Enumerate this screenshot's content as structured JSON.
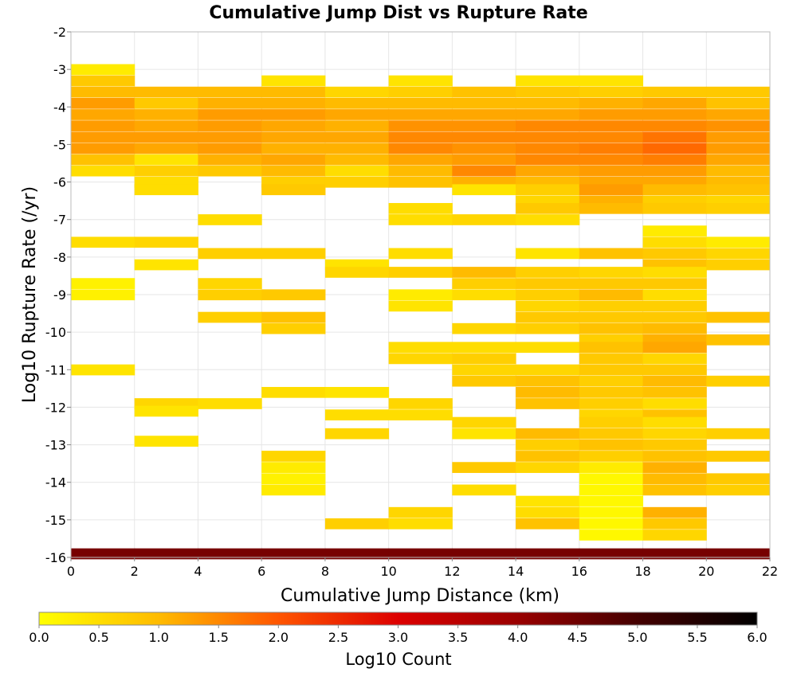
{
  "chart_data": {
    "type": "heatmap",
    "title": "Cumulative Jump Dist vs Rupture Rate",
    "xlabel": "Cumulative Jump Distance (km)",
    "ylabel": "Log10 Rupture Rate (/yr)",
    "xlim": [
      0,
      22
    ],
    "ylim": [
      -16,
      -2
    ],
    "x_ticks": [
      "0",
      "2",
      "4",
      "6",
      "8",
      "10",
      "12",
      "14",
      "16",
      "18",
      "20",
      "22"
    ],
    "y_ticks": [
      "-2",
      "-3",
      "-4",
      "-5",
      "-6",
      "-7",
      "-8",
      "-9",
      "-10",
      "-11",
      "-12",
      "-13",
      "-14",
      "-15",
      "-16"
    ],
    "x_bin_width": 2,
    "y_bin_height": 0.28,
    "grid": true,
    "colorbar": {
      "label": "Log10 Count",
      "range": [
        0,
        6
      ],
      "ticks": [
        "0.0",
        "0.5",
        "1.0",
        "1.5",
        "2.0",
        "2.5",
        "3.0",
        "3.5",
        "4.0",
        "4.5",
        "5.0",
        "5.5",
        "6.0"
      ],
      "colors": [
        "#ffff00",
        "#ffbb00",
        "#ff5500",
        "#dd0000",
        "#990000",
        "#440000",
        "#000000"
      ]
    },
    "cells": [
      {
        "x": 0,
        "y": -3.0,
        "v": 0.3
      },
      {
        "x": 0,
        "y": -3.3,
        "v": 0.8
      },
      {
        "x": 0,
        "y": -3.6,
        "v": 1.0
      },
      {
        "x": 0,
        "y": -3.9,
        "v": 1.3
      },
      {
        "x": 0,
        "y": -4.2,
        "v": 1.2
      },
      {
        "x": 0,
        "y": -4.5,
        "v": 1.3
      },
      {
        "x": 0,
        "y": -4.8,
        "v": 1.3
      },
      {
        "x": 0,
        "y": -5.1,
        "v": 1.3
      },
      {
        "x": 0,
        "y": -5.4,
        "v": 0.9
      },
      {
        "x": 0,
        "y": -5.7,
        "v": 0.5
      },
      {
        "x": 0,
        "y": -7.6,
        "v": 0.5
      },
      {
        "x": 0,
        "y": -8.7,
        "v": 0.2
      },
      {
        "x": 0,
        "y": -9.0,
        "v": 0.2
      },
      {
        "x": 0,
        "y": -11.0,
        "v": 0.4
      },
      {
        "x": 2,
        "y": -3.6,
        "v": 1.0
      },
      {
        "x": 2,
        "y": -3.9,
        "v": 0.8
      },
      {
        "x": 2,
        "y": -4.2,
        "v": 1.1
      },
      {
        "x": 2,
        "y": -4.5,
        "v": 1.2
      },
      {
        "x": 2,
        "y": -4.8,
        "v": 1.3
      },
      {
        "x": 2,
        "y": -5.1,
        "v": 1.2
      },
      {
        "x": 2,
        "y": -5.4,
        "v": 0.4
      },
      {
        "x": 2,
        "y": -5.7,
        "v": 0.7
      },
      {
        "x": 2,
        "y": -6.0,
        "v": 0.5
      },
      {
        "x": 2,
        "y": -6.2,
        "v": 0.5
      },
      {
        "x": 2,
        "y": -7.6,
        "v": 0.6
      },
      {
        "x": 2,
        "y": -8.2,
        "v": 0.4
      },
      {
        "x": 2,
        "y": -11.9,
        "v": 0.6
      },
      {
        "x": 2,
        "y": -12.1,
        "v": 0.4
      },
      {
        "x": 2,
        "y": -12.9,
        "v": 0.4
      },
      {
        "x": 4,
        "y": -3.6,
        "v": 1.0
      },
      {
        "x": 4,
        "y": -3.9,
        "v": 1.1
      },
      {
        "x": 4,
        "y": -4.2,
        "v": 1.3
      },
      {
        "x": 4,
        "y": -4.5,
        "v": 1.3
      },
      {
        "x": 4,
        "y": -4.8,
        "v": 1.3
      },
      {
        "x": 4,
        "y": -5.1,
        "v": 1.3
      },
      {
        "x": 4,
        "y": -5.4,
        "v": 1.1
      },
      {
        "x": 4,
        "y": -5.7,
        "v": 0.8
      },
      {
        "x": 4,
        "y": -7.0,
        "v": 0.5
      },
      {
        "x": 4,
        "y": -7.9,
        "v": 0.7
      },
      {
        "x": 4,
        "y": -8.7,
        "v": 0.6
      },
      {
        "x": 4,
        "y": -9.0,
        "v": 0.7
      },
      {
        "x": 4,
        "y": -9.6,
        "v": 0.7
      },
      {
        "x": 4,
        "y": -11.9,
        "v": 0.5
      },
      {
        "x": 6,
        "y": -3.3,
        "v": 0.4
      },
      {
        "x": 6,
        "y": -3.6,
        "v": 1.0
      },
      {
        "x": 6,
        "y": -3.9,
        "v": 1.1
      },
      {
        "x": 6,
        "y": -4.2,
        "v": 1.3
      },
      {
        "x": 6,
        "y": -4.5,
        "v": 1.2
      },
      {
        "x": 6,
        "y": -4.8,
        "v": 1.2
      },
      {
        "x": 6,
        "y": -5.1,
        "v": 1.1
      },
      {
        "x": 6,
        "y": -5.4,
        "v": 1.2
      },
      {
        "x": 6,
        "y": -5.7,
        "v": 1.0
      },
      {
        "x": 6,
        "y": -6.0,
        "v": 0.7
      },
      {
        "x": 6,
        "y": -6.2,
        "v": 0.8
      },
      {
        "x": 6,
        "y": -7.9,
        "v": 0.7
      },
      {
        "x": 6,
        "y": -9.0,
        "v": 0.8
      },
      {
        "x": 6,
        "y": -9.6,
        "v": 0.9
      },
      {
        "x": 6,
        "y": -9.9,
        "v": 0.7
      },
      {
        "x": 6,
        "y": -11.6,
        "v": 0.5
      },
      {
        "x": 6,
        "y": -13.3,
        "v": 0.6
      },
      {
        "x": 6,
        "y": -13.6,
        "v": 0.3
      },
      {
        "x": 6,
        "y": -13.9,
        "v": 0.2
      },
      {
        "x": 6,
        "y": -14.2,
        "v": 0.3
      },
      {
        "x": 8,
        "y": -3.6,
        "v": 0.6
      },
      {
        "x": 8,
        "y": -3.9,
        "v": 1.0
      },
      {
        "x": 8,
        "y": -4.2,
        "v": 1.2
      },
      {
        "x": 8,
        "y": -4.5,
        "v": 1.1
      },
      {
        "x": 8,
        "y": -4.8,
        "v": 1.2
      },
      {
        "x": 8,
        "y": -5.1,
        "v": 1.1
      },
      {
        "x": 8,
        "y": -5.4,
        "v": 1.0
      },
      {
        "x": 8,
        "y": -5.7,
        "v": 0.5
      },
      {
        "x": 8,
        "y": -6.0,
        "v": 0.7
      },
      {
        "x": 8,
        "y": -8.2,
        "v": 0.4
      },
      {
        "x": 8,
        "y": -8.4,
        "v": 0.6
      },
      {
        "x": 8,
        "y": -11.6,
        "v": 0.4
      },
      {
        "x": 8,
        "y": -12.2,
        "v": 0.5
      },
      {
        "x": 8,
        "y": -12.7,
        "v": 0.6
      },
      {
        "x": 8,
        "y": -15.1,
        "v": 0.7
      },
      {
        "x": 10,
        "y": -3.3,
        "v": 0.4
      },
      {
        "x": 10,
        "y": -3.6,
        "v": 0.7
      },
      {
        "x": 10,
        "y": -3.9,
        "v": 1.0
      },
      {
        "x": 10,
        "y": -4.2,
        "v": 1.2
      },
      {
        "x": 10,
        "y": -4.5,
        "v": 1.4
      },
      {
        "x": 10,
        "y": -4.8,
        "v": 1.5
      },
      {
        "x": 10,
        "y": -5.1,
        "v": 1.5
      },
      {
        "x": 10,
        "y": -5.4,
        "v": 1.2
      },
      {
        "x": 10,
        "y": -5.7,
        "v": 1.0
      },
      {
        "x": 10,
        "y": -6.0,
        "v": 0.9
      },
      {
        "x": 10,
        "y": -6.7,
        "v": 0.5
      },
      {
        "x": 10,
        "y": -7.0,
        "v": 0.5
      },
      {
        "x": 10,
        "y": -7.9,
        "v": 0.5
      },
      {
        "x": 10,
        "y": -8.4,
        "v": 0.7
      },
      {
        "x": 10,
        "y": -9.0,
        "v": 0.3
      },
      {
        "x": 10,
        "y": -9.3,
        "v": 0.4
      },
      {
        "x": 10,
        "y": -10.4,
        "v": 0.5
      },
      {
        "x": 10,
        "y": -10.7,
        "v": 0.6
      },
      {
        "x": 10,
        "y": -11.9,
        "v": 0.6
      },
      {
        "x": 10,
        "y": -12.2,
        "v": 0.5
      },
      {
        "x": 10,
        "y": -14.8,
        "v": 0.6
      },
      {
        "x": 10,
        "y": -15.1,
        "v": 0.5
      },
      {
        "x": 12,
        "y": -3.6,
        "v": 0.9
      },
      {
        "x": 12,
        "y": -3.9,
        "v": 1.0
      },
      {
        "x": 12,
        "y": -4.2,
        "v": 1.2
      },
      {
        "x": 12,
        "y": -4.5,
        "v": 1.4
      },
      {
        "x": 12,
        "y": -4.8,
        "v": 1.5
      },
      {
        "x": 12,
        "y": -5.1,
        "v": 1.4
      },
      {
        "x": 12,
        "y": -5.4,
        "v": 1.3
      },
      {
        "x": 12,
        "y": -5.7,
        "v": 1.5
      },
      {
        "x": 12,
        "y": -6.0,
        "v": 1.1
      },
      {
        "x": 12,
        "y": -6.2,
        "v": 0.4
      },
      {
        "x": 12,
        "y": -7.0,
        "v": 0.6
      },
      {
        "x": 12,
        "y": -8.4,
        "v": 1.0
      },
      {
        "x": 12,
        "y": -8.7,
        "v": 0.7
      },
      {
        "x": 12,
        "y": -9.0,
        "v": 0.5
      },
      {
        "x": 12,
        "y": -9.9,
        "v": 0.6
      },
      {
        "x": 12,
        "y": -10.4,
        "v": 0.5
      },
      {
        "x": 12,
        "y": -10.7,
        "v": 0.7
      },
      {
        "x": 12,
        "y": -11.0,
        "v": 0.6
      },
      {
        "x": 12,
        "y": -11.3,
        "v": 0.8
      },
      {
        "x": 12,
        "y": -12.4,
        "v": 0.6
      },
      {
        "x": 12,
        "y": -12.7,
        "v": 0.4
      },
      {
        "x": 12,
        "y": -13.6,
        "v": 0.8
      },
      {
        "x": 12,
        "y": -14.2,
        "v": 0.5
      },
      {
        "x": 14,
        "y": -3.3,
        "v": 0.4
      },
      {
        "x": 14,
        "y": -3.6,
        "v": 0.8
      },
      {
        "x": 14,
        "y": -3.9,
        "v": 1.0
      },
      {
        "x": 14,
        "y": -4.2,
        "v": 1.2
      },
      {
        "x": 14,
        "y": -4.5,
        "v": 1.5
      },
      {
        "x": 14,
        "y": -4.8,
        "v": 1.5
      },
      {
        "x": 14,
        "y": -5.1,
        "v": 1.5
      },
      {
        "x": 14,
        "y": -5.4,
        "v": 1.5
      },
      {
        "x": 14,
        "y": -5.7,
        "v": 1.2
      },
      {
        "x": 14,
        "y": -6.0,
        "v": 1.0
      },
      {
        "x": 14,
        "y": -6.2,
        "v": 0.7
      },
      {
        "x": 14,
        "y": -6.5,
        "v": 0.6
      },
      {
        "x": 14,
        "y": -6.7,
        "v": 0.8
      },
      {
        "x": 14,
        "y": -7.0,
        "v": 0.5
      },
      {
        "x": 14,
        "y": -7.9,
        "v": 0.4
      },
      {
        "x": 14,
        "y": -8.4,
        "v": 0.7
      },
      {
        "x": 14,
        "y": -8.7,
        "v": 0.8
      },
      {
        "x": 14,
        "y": -9.0,
        "v": 0.7
      },
      {
        "x": 14,
        "y": -9.3,
        "v": 0.6
      },
      {
        "x": 14,
        "y": -9.6,
        "v": 0.8
      },
      {
        "x": 14,
        "y": -9.9,
        "v": 0.7
      },
      {
        "x": 14,
        "y": -10.4,
        "v": 0.5
      },
      {
        "x": 14,
        "y": -11.0,
        "v": 0.6
      },
      {
        "x": 14,
        "y": -11.3,
        "v": 0.9
      },
      {
        "x": 14,
        "y": -11.6,
        "v": 1.0
      },
      {
        "x": 14,
        "y": -11.9,
        "v": 0.9
      },
      {
        "x": 14,
        "y": -12.7,
        "v": 1.0
      },
      {
        "x": 14,
        "y": -13.0,
        "v": 0.7
      },
      {
        "x": 14,
        "y": -13.3,
        "v": 0.9
      },
      {
        "x": 14,
        "y": -13.6,
        "v": 0.6
      },
      {
        "x": 14,
        "y": -14.5,
        "v": 0.4
      },
      {
        "x": 14,
        "y": -14.8,
        "v": 0.5
      },
      {
        "x": 14,
        "y": -15.1,
        "v": 0.9
      },
      {
        "x": 16,
        "y": -3.3,
        "v": 0.4
      },
      {
        "x": 16,
        "y": -3.6,
        "v": 0.7
      },
      {
        "x": 16,
        "y": -3.9,
        "v": 1.1
      },
      {
        "x": 16,
        "y": -4.2,
        "v": 1.3
      },
      {
        "x": 16,
        "y": -4.5,
        "v": 1.5
      },
      {
        "x": 16,
        "y": -4.8,
        "v": 1.5
      },
      {
        "x": 16,
        "y": -5.1,
        "v": 1.6
      },
      {
        "x": 16,
        "y": -5.4,
        "v": 1.5
      },
      {
        "x": 16,
        "y": -5.7,
        "v": 1.3
      },
      {
        "x": 16,
        "y": -6.0,
        "v": 1.2
      },
      {
        "x": 16,
        "y": -6.2,
        "v": 1.3
      },
      {
        "x": 16,
        "y": -6.5,
        "v": 1.1
      },
      {
        "x": 16,
        "y": -6.7,
        "v": 1.0
      },
      {
        "x": 16,
        "y": -7.9,
        "v": 0.9
      },
      {
        "x": 16,
        "y": -8.4,
        "v": 0.6
      },
      {
        "x": 16,
        "y": -8.7,
        "v": 0.8
      },
      {
        "x": 16,
        "y": -9.0,
        "v": 1.0
      },
      {
        "x": 16,
        "y": -9.3,
        "v": 0.7
      },
      {
        "x": 16,
        "y": -9.6,
        "v": 0.8
      },
      {
        "x": 16,
        "y": -9.9,
        "v": 0.9
      },
      {
        "x": 16,
        "y": -10.2,
        "v": 0.7
      },
      {
        "x": 16,
        "y": -10.4,
        "v": 0.9
      },
      {
        "x": 16,
        "y": -10.7,
        "v": 0.8
      },
      {
        "x": 16,
        "y": -11.0,
        "v": 0.8
      },
      {
        "x": 16,
        "y": -11.3,
        "v": 0.7
      },
      {
        "x": 16,
        "y": -11.6,
        "v": 0.8
      },
      {
        "x": 16,
        "y": -11.9,
        "v": 0.7
      },
      {
        "x": 16,
        "y": -12.2,
        "v": 0.6
      },
      {
        "x": 16,
        "y": -12.4,
        "v": 0.7
      },
      {
        "x": 16,
        "y": -12.7,
        "v": 0.8
      },
      {
        "x": 16,
        "y": -13.0,
        "v": 0.9
      },
      {
        "x": 16,
        "y": -13.3,
        "v": 0.7
      },
      {
        "x": 16,
        "y": -13.6,
        "v": 0.3
      },
      {
        "x": 16,
        "y": -13.9,
        "v": 0.1
      },
      {
        "x": 16,
        "y": -14.2,
        "v": 0.1
      },
      {
        "x": 16,
        "y": -14.5,
        "v": 0.1
      },
      {
        "x": 16,
        "y": -14.8,
        "v": 0.1
      },
      {
        "x": 16,
        "y": -15.1,
        "v": 0.1
      },
      {
        "x": 16,
        "y": -15.4,
        "v": 0.1
      },
      {
        "x": 18,
        "y": -3.6,
        "v": 0.8
      },
      {
        "x": 18,
        "y": -3.9,
        "v": 1.2
      },
      {
        "x": 18,
        "y": -4.2,
        "v": 1.3
      },
      {
        "x": 18,
        "y": -4.5,
        "v": 1.5
      },
      {
        "x": 18,
        "y": -4.8,
        "v": 1.7
      },
      {
        "x": 18,
        "y": -5.1,
        "v": 1.8
      },
      {
        "x": 18,
        "y": -5.4,
        "v": 1.6
      },
      {
        "x": 18,
        "y": -5.7,
        "v": 1.3
      },
      {
        "x": 18,
        "y": -6.0,
        "v": 1.2
      },
      {
        "x": 18,
        "y": -6.2,
        "v": 1.0
      },
      {
        "x": 18,
        "y": -6.5,
        "v": 0.7
      },
      {
        "x": 18,
        "y": -6.7,
        "v": 0.8
      },
      {
        "x": 18,
        "y": -7.3,
        "v": 0.3
      },
      {
        "x": 18,
        "y": -7.6,
        "v": 0.5
      },
      {
        "x": 18,
        "y": -7.9,
        "v": 0.8
      },
      {
        "x": 18,
        "y": -8.2,
        "v": 0.9
      },
      {
        "x": 18,
        "y": -8.4,
        "v": 0.5
      },
      {
        "x": 18,
        "y": -8.7,
        "v": 0.8
      },
      {
        "x": 18,
        "y": -9.0,
        "v": 0.5
      },
      {
        "x": 18,
        "y": -9.3,
        "v": 0.7
      },
      {
        "x": 18,
        "y": -9.6,
        "v": 0.8
      },
      {
        "x": 18,
        "y": -9.9,
        "v": 1.0
      },
      {
        "x": 18,
        "y": -10.2,
        "v": 1.1
      },
      {
        "x": 18,
        "y": -10.4,
        "v": 1.2
      },
      {
        "x": 18,
        "y": -10.7,
        "v": 0.6
      },
      {
        "x": 18,
        "y": -11.0,
        "v": 0.8
      },
      {
        "x": 18,
        "y": -11.3,
        "v": 1.0
      },
      {
        "x": 18,
        "y": -11.6,
        "v": 0.9
      },
      {
        "x": 18,
        "y": -11.9,
        "v": 0.5
      },
      {
        "x": 18,
        "y": -12.2,
        "v": 0.9
      },
      {
        "x": 18,
        "y": -12.4,
        "v": 0.5
      },
      {
        "x": 18,
        "y": -12.7,
        "v": 0.6
      },
      {
        "x": 18,
        "y": -13.0,
        "v": 0.8
      },
      {
        "x": 18,
        "y": -13.3,
        "v": 0.9
      },
      {
        "x": 18,
        "y": -13.6,
        "v": 1.1
      },
      {
        "x": 18,
        "y": -13.9,
        "v": 1.0
      },
      {
        "x": 18,
        "y": -14.2,
        "v": 0.9
      },
      {
        "x": 18,
        "y": -14.8,
        "v": 1.1
      },
      {
        "x": 18,
        "y": -15.1,
        "v": 0.8
      },
      {
        "x": 18,
        "y": -15.4,
        "v": 0.6
      },
      {
        "x": 20,
        "y": -3.6,
        "v": 0.8
      },
      {
        "x": 20,
        "y": -3.9,
        "v": 0.9
      },
      {
        "x": 20,
        "y": -4.2,
        "v": 1.2
      },
      {
        "x": 20,
        "y": -4.5,
        "v": 1.4
      },
      {
        "x": 20,
        "y": -4.8,
        "v": 1.3
      },
      {
        "x": 20,
        "y": -5.1,
        "v": 1.3
      },
      {
        "x": 20,
        "y": -5.4,
        "v": 1.2
      },
      {
        "x": 20,
        "y": -5.7,
        "v": 1.0
      },
      {
        "x": 20,
        "y": -6.0,
        "v": 1.0
      },
      {
        "x": 20,
        "y": -6.2,
        "v": 0.9
      },
      {
        "x": 20,
        "y": -6.5,
        "v": 0.6
      },
      {
        "x": 20,
        "y": -6.7,
        "v": 0.7
      },
      {
        "x": 20,
        "y": -7.6,
        "v": 0.3
      },
      {
        "x": 20,
        "y": -7.9,
        "v": 0.6
      },
      {
        "x": 20,
        "y": -8.2,
        "v": 0.7
      },
      {
        "x": 20,
        "y": -9.6,
        "v": 0.9
      },
      {
        "x": 20,
        "y": -10.2,
        "v": 0.9
      },
      {
        "x": 20,
        "y": -11.3,
        "v": 0.7
      },
      {
        "x": 20,
        "y": -12.7,
        "v": 0.7
      },
      {
        "x": 20,
        "y": -13.3,
        "v": 0.8
      },
      {
        "x": 20,
        "y": -13.9,
        "v": 0.8
      },
      {
        "x": 20,
        "y": -14.2,
        "v": 0.7
      },
      {
        "x": 0,
        "y": -15.9,
        "v": 4.4
      },
      {
        "x": 2,
        "y": -15.9,
        "v": 4.4
      },
      {
        "x": 4,
        "y": -15.9,
        "v": 4.4
      },
      {
        "x": 6,
        "y": -15.9,
        "v": 4.4
      },
      {
        "x": 8,
        "y": -15.9,
        "v": 4.4
      },
      {
        "x": 10,
        "y": -15.9,
        "v": 4.4
      },
      {
        "x": 12,
        "y": -15.9,
        "v": 4.4
      },
      {
        "x": 14,
        "y": -15.9,
        "v": 4.4
      },
      {
        "x": 16,
        "y": -15.9,
        "v": 4.4
      },
      {
        "x": 18,
        "y": -15.9,
        "v": 4.4
      },
      {
        "x": 20,
        "y": -15.9,
        "v": 4.4
      }
    ]
  }
}
